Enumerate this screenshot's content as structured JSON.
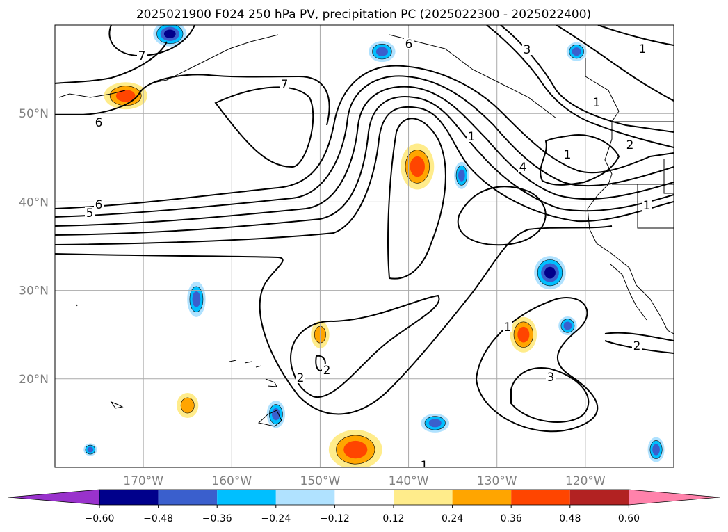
{
  "chart_data": {
    "type": "heatmap",
    "title": "2025021900 F024 250 hPa PV, precipitation PC (2025022300 - 2025022400)",
    "map": {
      "lon_range": [
        -180,
        -110
      ],
      "lat_range": [
        10,
        60
      ],
      "grid": true,
      "x_ticks": [
        "170°W",
        "160°W",
        "150°W",
        "140°W",
        "130°W",
        "120°W"
      ],
      "x_tick_values": [
        -170,
        -160,
        -150,
        -140,
        -130,
        -120
      ],
      "y_ticks": [
        "20°N",
        "30°N",
        "40°N",
        "50°N"
      ],
      "y_tick_values": [
        20,
        30,
        40,
        50
      ]
    },
    "colorbar": {
      "orientation": "horizontal",
      "extend": "both",
      "ticks": [
        "−0.60",
        "−0.48",
        "−0.36",
        "−0.24",
        "−0.12",
        "0.12",
        "0.24",
        "0.36",
        "0.48",
        "0.60"
      ],
      "colors": [
        "#9932cc",
        "#00008b",
        "#3a5fcd",
        "#00bfff",
        "#b0e2ff",
        "#ffffff",
        "#ffec8b",
        "#ffa500",
        "#ff4500",
        "#b22222",
        "#ff82ab"
      ]
    },
    "pv_contour_labels": [
      "7",
      "6",
      "5",
      "6",
      "7",
      "6",
      "1",
      "4",
      "3",
      "1",
      "1",
      "2",
      "1",
      "1",
      "1",
      "2",
      "3",
      "2",
      "2",
      "1"
    ],
    "precip_anomalies": [
      {
        "lon": -172,
        "lat": 52,
        "sign": "positive",
        "peak": 0.36
      },
      {
        "lon": -139,
        "lat": 44,
        "sign": "positive",
        "peak": 0.36
      },
      {
        "lon": -167,
        "lat": 59,
        "sign": "negative",
        "peak": -0.48
      },
      {
        "lon": -124,
        "lat": 32,
        "sign": "negative",
        "peak": -0.48
      },
      {
        "lon": -146,
        "lat": 12,
        "sign": "positive",
        "peak": 0.36
      },
      {
        "lon": -127,
        "lat": 25,
        "sign": "positive",
        "peak": 0.36
      },
      {
        "lon": -164,
        "lat": 29,
        "sign": "negative",
        "peak": -0.36
      },
      {
        "lon": -150,
        "lat": 25,
        "sign": "positive",
        "peak": 0.24
      },
      {
        "lon": -165,
        "lat": 17,
        "sign": "positive",
        "peak": 0.24
      },
      {
        "lon": -155,
        "lat": 16,
        "sign": "negative",
        "peak": -0.36
      },
      {
        "lon": -137,
        "lat": 15,
        "sign": "negative",
        "peak": -0.36
      },
      {
        "lon": -143,
        "lat": 57,
        "sign": "negative",
        "peak": -0.36
      },
      {
        "lon": -121,
        "lat": 57,
        "sign": "negative",
        "peak": -0.36
      },
      {
        "lon": -134,
        "lat": 43,
        "sign": "negative",
        "peak": -0.36
      },
      {
        "lon": -122,
        "lat": 26,
        "sign": "negative",
        "peak": -0.36
      },
      {
        "lon": -112,
        "lat": 12,
        "sign": "negative",
        "peak": -0.36
      },
      {
        "lon": -176,
        "lat": 12,
        "sign": "negative",
        "peak": -0.36
      }
    ]
  }
}
